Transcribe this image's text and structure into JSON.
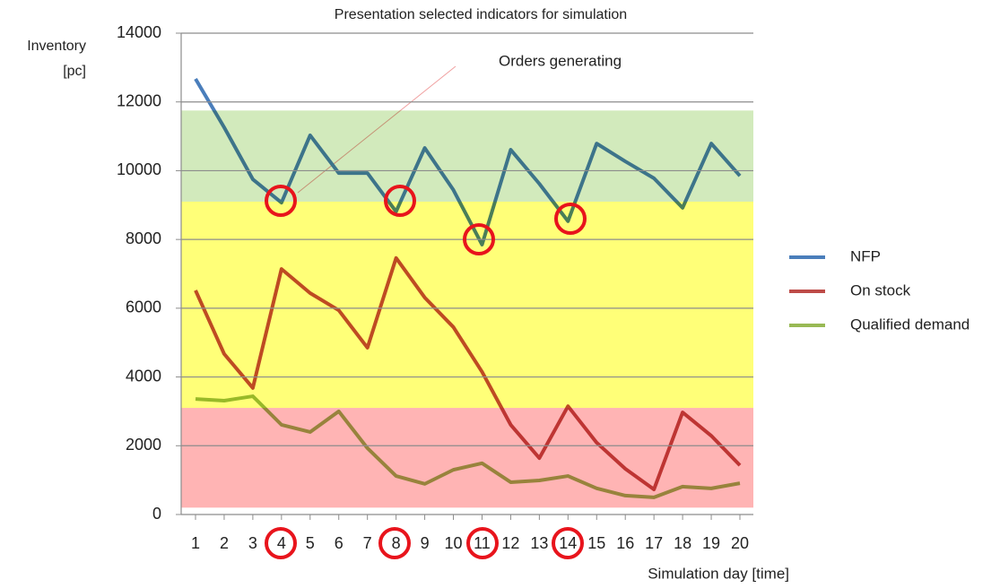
{
  "chart_data": {
    "type": "line",
    "title": "Presentation selected indicators  for simulation",
    "y_label": "Inventory [pc]",
    "x_label": "Simulation  day [time]",
    "annotation": "Orders generating",
    "categories": [
      "1",
      "2",
      "3",
      "4",
      "5",
      "6",
      "7",
      "8",
      "9",
      "10",
      "11",
      "12",
      "13",
      "14",
      "15",
      "16",
      "17",
      "18",
      "19",
      "20"
    ],
    "series": [
      {
        "name": "NFP",
        "color": "#4a7ebb",
        "values": [
          12670,
          11260,
          9750,
          9070,
          11030,
          9930,
          9930,
          8810,
          10660,
          9440,
          7850,
          10610,
          9620,
          8530,
          10790,
          10270,
          9780,
          8920,
          10790,
          9850
        ]
      },
      {
        "name": "On stock",
        "color": "#be4b48",
        "values": [
          6520,
          4670,
          3680,
          7140,
          6440,
          5940,
          4850,
          7460,
          6310,
          5450,
          4150,
          2610,
          1640,
          3150,
          2090,
          1330,
          730,
          2970,
          2290,
          1430
        ]
      },
      {
        "name": "Qualified demand",
        "color": "#98b954",
        "values": [
          3360,
          3310,
          3440,
          2610,
          2400,
          3000,
          1930,
          1120,
          890,
          1300,
          1490,
          940,
          990,
          1120,
          760,
          550,
          500,
          810,
          760,
          910
        ]
      }
    ],
    "bands": [
      {
        "from": 9100,
        "to": 11750,
        "color": "#d2eabc"
      },
      {
        "from": 3100,
        "to": 9100,
        "color": "#ffff78"
      },
      {
        "from": 200,
        "to": 3100,
        "color": "#ffb4b4"
      }
    ],
    "ylim": [
      0,
      14000
    ],
    "yticks": [
      0,
      2000,
      4000,
      6000,
      8000,
      10000,
      12000,
      14000
    ],
    "grid": true,
    "legend": "right"
  }
}
